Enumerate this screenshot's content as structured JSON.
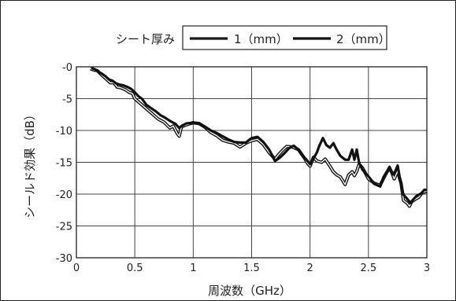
{
  "chart_data": {
    "type": "line",
    "title": "",
    "legend_title": "シート厚み",
    "xlabel": "周波数（GHz）",
    "ylabel": "シールド効果（dB）",
    "xlim": [
      0,
      3
    ],
    "ylim": [
      -30,
      0
    ],
    "x_ticks": [
      "0",
      "0.5",
      "1",
      "1.5",
      "2",
      "2.5",
      "3"
    ],
    "y_ticks": [
      "-0",
      "-5",
      "-10",
      "-15",
      "-20",
      "-25",
      "-30"
    ],
    "grid": true,
    "legend_position": "top-right",
    "series": [
      {
        "name": "1（mm）",
        "color": "#1a1a1a",
        "points": [
          [
            0.12,
            -0.3
          ],
          [
            0.15,
            -0.5
          ],
          [
            0.18,
            -0.6
          ],
          [
            0.2,
            -1.0
          ],
          [
            0.23,
            -1.5
          ],
          [
            0.26,
            -2.0
          ],
          [
            0.29,
            -2.5
          ],
          [
            0.32,
            -2.5
          ],
          [
            0.35,
            -3.2
          ],
          [
            0.38,
            -3.3
          ],
          [
            0.42,
            -3.6
          ],
          [
            0.45,
            -4.0
          ],
          [
            0.48,
            -4.2
          ],
          [
            0.5,
            -5.0
          ],
          [
            0.55,
            -5.8
          ],
          [
            0.6,
            -6.6
          ],
          [
            0.65,
            -7.4
          ],
          [
            0.7,
            -8.2
          ],
          [
            0.75,
            -8.7
          ],
          [
            0.8,
            -9.6
          ],
          [
            0.83,
            -9.3
          ],
          [
            0.86,
            -10.4
          ],
          [
            0.88,
            -10.9
          ],
          [
            0.9,
            -9.4
          ],
          [
            0.93,
            -9.2
          ],
          [
            0.96,
            -9.0
          ],
          [
            1.0,
            -8.8
          ],
          [
            1.05,
            -8.9
          ],
          [
            1.1,
            -9.5
          ],
          [
            1.15,
            -10.3
          ],
          [
            1.2,
            -10.8
          ],
          [
            1.25,
            -11.5
          ],
          [
            1.3,
            -11.8
          ],
          [
            1.35,
            -12.0
          ],
          [
            1.4,
            -12.6
          ],
          [
            1.45,
            -12.0
          ],
          [
            1.5,
            -11.6
          ],
          [
            1.55,
            -11.4
          ],
          [
            1.6,
            -12.2
          ],
          [
            1.65,
            -13.5
          ],
          [
            1.7,
            -14.5
          ],
          [
            1.73,
            -13.8
          ],
          [
            1.76,
            -13.2
          ],
          [
            1.8,
            -12.5
          ],
          [
            1.85,
            -12.6
          ],
          [
            1.9,
            -13.0
          ],
          [
            1.95,
            -14.3
          ],
          [
            1.98,
            -15.2
          ],
          [
            2.0,
            -15.6
          ],
          [
            2.03,
            -14.2
          ],
          [
            2.06,
            -14.8
          ],
          [
            2.1,
            -15.0
          ],
          [
            2.13,
            -14.5
          ],
          [
            2.17,
            -15.6
          ],
          [
            2.2,
            -16.5
          ],
          [
            2.23,
            -17.0
          ],
          [
            2.26,
            -17.3
          ],
          [
            2.3,
            -18.5
          ],
          [
            2.33,
            -17.0
          ],
          [
            2.36,
            -16.5
          ],
          [
            2.38,
            -17.1
          ],
          [
            2.4,
            -16.4
          ],
          [
            2.42,
            -15.3
          ],
          [
            2.45,
            -15.9
          ],
          [
            2.5,
            -17.6
          ],
          [
            2.55,
            -18.3
          ],
          [
            2.6,
            -18.6
          ],
          [
            2.63,
            -17.5
          ],
          [
            2.65,
            -16.8
          ],
          [
            2.68,
            -15.9
          ],
          [
            2.7,
            -16.6
          ],
          [
            2.72,
            -17.6
          ],
          [
            2.75,
            -16.4
          ],
          [
            2.78,
            -18.4
          ],
          [
            2.8,
            -21.0
          ],
          [
            2.83,
            -21.4
          ],
          [
            2.85,
            -21.9
          ],
          [
            2.87,
            -21.2
          ],
          [
            2.9,
            -20.8
          ],
          [
            2.93,
            -20.5
          ],
          [
            2.96,
            -19.8
          ],
          [
            3.0,
            -19.5
          ]
        ]
      },
      {
        "name": "2（mm）",
        "color": "#111111",
        "points": [
          [
            0.13,
            -0.2
          ],
          [
            0.16,
            -0.4
          ],
          [
            0.19,
            -0.8
          ],
          [
            0.22,
            -1.1
          ],
          [
            0.25,
            -1.5
          ],
          [
            0.28,
            -2.0
          ],
          [
            0.31,
            -2.2
          ],
          [
            0.34,
            -2.6
          ],
          [
            0.37,
            -2.8
          ],
          [
            0.4,
            -2.9
          ],
          [
            0.44,
            -3.2
          ],
          [
            0.47,
            -3.5
          ],
          [
            0.5,
            -4.0
          ],
          [
            0.53,
            -4.6
          ],
          [
            0.56,
            -5.0
          ],
          [
            0.6,
            -6.0
          ],
          [
            0.64,
            -6.5
          ],
          [
            0.68,
            -7.0
          ],
          [
            0.72,
            -7.6
          ],
          [
            0.76,
            -8.0
          ],
          [
            0.8,
            -8.5
          ],
          [
            0.85,
            -9.0
          ],
          [
            0.88,
            -9.6
          ],
          [
            0.9,
            -9.3
          ],
          [
            0.94,
            -8.9
          ],
          [
            0.98,
            -8.8
          ],
          [
            1.0,
            -8.7
          ],
          [
            1.05,
            -9.0
          ],
          [
            1.1,
            -9.4
          ],
          [
            1.15,
            -10.0
          ],
          [
            1.2,
            -10.4
          ],
          [
            1.25,
            -10.9
          ],
          [
            1.3,
            -11.4
          ],
          [
            1.35,
            -11.8
          ],
          [
            1.4,
            -11.9
          ],
          [
            1.45,
            -11.9
          ],
          [
            1.5,
            -11.2
          ],
          [
            1.55,
            -11.0
          ],
          [
            1.6,
            -11.8
          ],
          [
            1.65,
            -13.0
          ],
          [
            1.7,
            -14.8
          ],
          [
            1.74,
            -14.3
          ],
          [
            1.78,
            -13.6
          ],
          [
            1.82,
            -12.8
          ],
          [
            1.86,
            -12.4
          ],
          [
            1.9,
            -13.0
          ],
          [
            1.94,
            -14.0
          ],
          [
            1.97,
            -14.6
          ],
          [
            2.0,
            -15.3
          ],
          [
            2.03,
            -14.4
          ],
          [
            2.06,
            -13.4
          ],
          [
            2.08,
            -12.4
          ],
          [
            2.11,
            -11.2
          ],
          [
            2.14,
            -12.3
          ],
          [
            2.17,
            -12.7
          ],
          [
            2.2,
            -12.0
          ],
          [
            2.23,
            -13.1
          ],
          [
            2.26,
            -14.0
          ],
          [
            2.3,
            -14.6
          ],
          [
            2.33,
            -14.6
          ],
          [
            2.36,
            -13.0
          ],
          [
            2.38,
            -14.6
          ],
          [
            2.4,
            -13.0
          ],
          [
            2.42,
            -15.1
          ],
          [
            2.45,
            -16.2
          ],
          [
            2.5,
            -17.2
          ],
          [
            2.55,
            -18.4
          ],
          [
            2.6,
            -18.8
          ],
          [
            2.63,
            -17.3
          ],
          [
            2.66,
            -16.4
          ],
          [
            2.68,
            -15.7
          ],
          [
            2.71,
            -16.9
          ],
          [
            2.73,
            -16.4
          ],
          [
            2.75,
            -15.5
          ],
          [
            2.77,
            -17.6
          ],
          [
            2.8,
            -20.1
          ],
          [
            2.83,
            -20.7
          ],
          [
            2.86,
            -21.4
          ],
          [
            2.88,
            -20.9
          ],
          [
            2.91,
            -20.3
          ],
          [
            2.95,
            -19.9
          ],
          [
            2.98,
            -19.3
          ],
          [
            3.0,
            -19.4
          ]
        ]
      }
    ]
  }
}
